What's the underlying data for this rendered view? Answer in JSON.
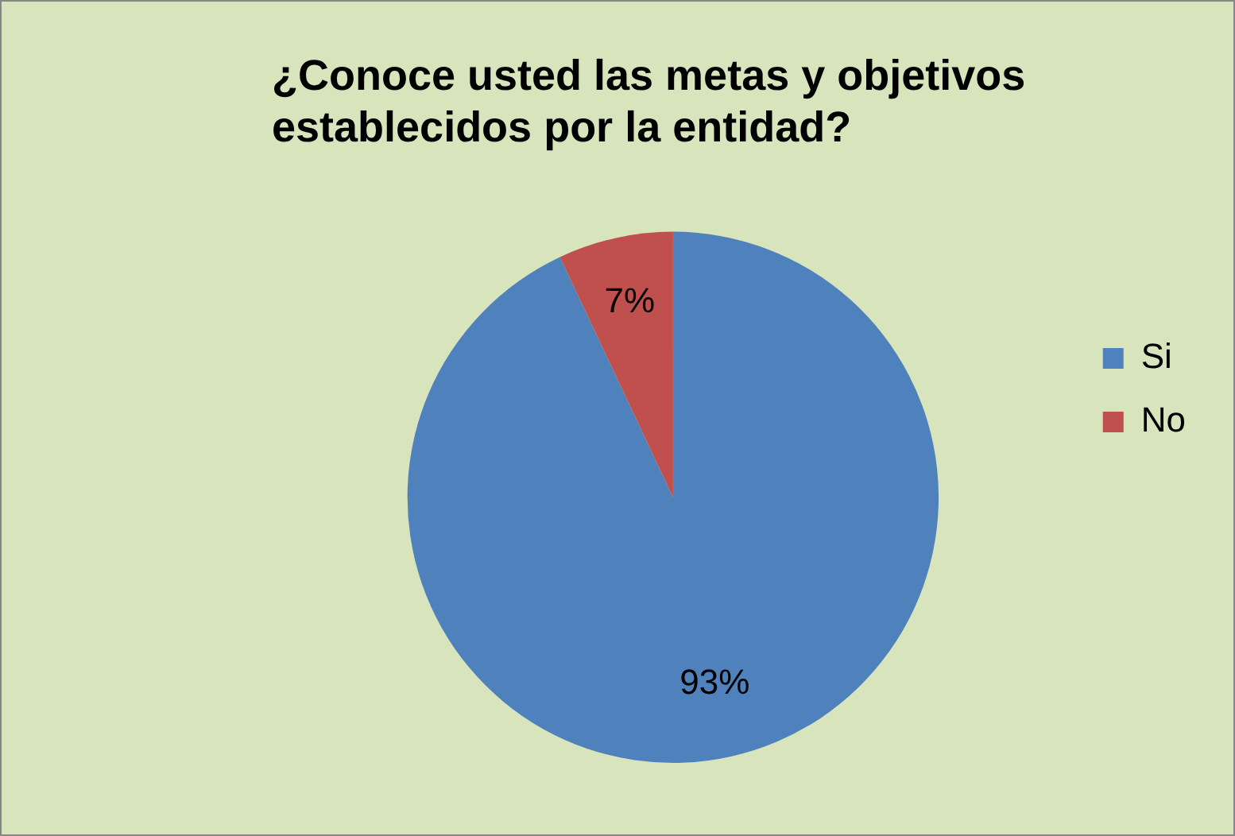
{
  "chart_data": {
    "type": "pie",
    "title": "¿Conoce usted las metas y objetivos establecidos por la entidad?",
    "categories": [
      "Si",
      "No"
    ],
    "values": [
      93,
      7
    ],
    "colors": [
      "#4f81bd",
      "#c0504d"
    ],
    "value_labels": [
      "93%",
      "7%"
    ],
    "legend": "right"
  }
}
